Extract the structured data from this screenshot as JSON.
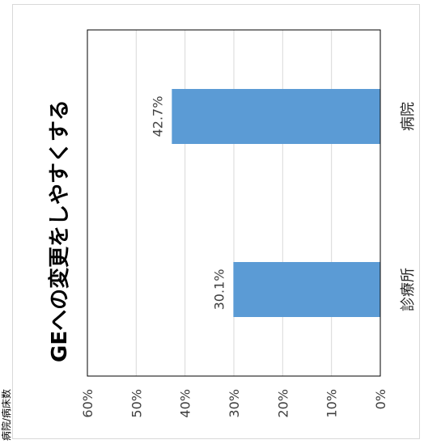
{
  "margin_note": "病院/病床数",
  "chart_data": {
    "type": "bar",
    "orientation": "horizontal",
    "title": "GEへの変更をしやすくする",
    "categories": [
      "診療所",
      "病院"
    ],
    "values": [
      30.1,
      42.7
    ],
    "data_labels": [
      "30.1%",
      "42.7%"
    ],
    "value_axis": {
      "min": 0,
      "max": 60,
      "step": 10,
      "tick_labels": [
        "0%",
        "10%",
        "20%",
        "30%",
        "40%",
        "50%",
        "60%"
      ]
    },
    "grid": true,
    "legend": "none",
    "bar_color": "#5b9bd5",
    "grid_color": "#d9d9d9"
  }
}
